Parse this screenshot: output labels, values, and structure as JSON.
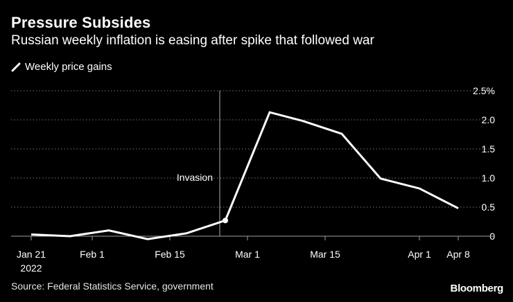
{
  "header": {
    "title": "Pressure Subsides",
    "subtitle": "Russian weekly inflation is easing after spike that followed war"
  },
  "legend": {
    "label": "Weekly price gains"
  },
  "footer": {
    "source": "Source: Federal Statistics Service, government",
    "brand": "Bloomberg"
  },
  "colors": {
    "background": "#000000",
    "line": "#ffffff",
    "grid": "#7a7a7a",
    "text": "#ffffff"
  },
  "chart_data": {
    "type": "line",
    "title": "Pressure Subsides",
    "subtitle": "Russian weekly inflation is easing after spike that followed war",
    "series": [
      {
        "name": "Weekly price gains",
        "x": [
          "Jan 21",
          "Jan 28",
          "Feb 4",
          "Feb 11",
          "Feb 18",
          "Feb 25",
          "Mar 5",
          "Mar 11",
          "Mar 18",
          "Mar 25",
          "Apr 1",
          "Apr 8"
        ],
        "values": [
          0.03,
          0.0,
          0.1,
          -0.05,
          0.05,
          0.27,
          2.13,
          1.98,
          1.76,
          0.99,
          0.82,
          0.48
        ]
      }
    ],
    "xlabel": "",
    "ylabel": "",
    "ylim": [
      -0.2,
      2.5
    ],
    "yticks": [
      {
        "value": 0,
        "label": "0"
      },
      {
        "value": 0.5,
        "label": "0.5"
      },
      {
        "value": 1.0,
        "label": "1.0"
      },
      {
        "value": 1.5,
        "label": "1.5"
      },
      {
        "value": 2.0,
        "label": "2.0"
      },
      {
        "value": 2.5,
        "label": "2.5%"
      }
    ],
    "xticks": [
      {
        "date": "Jan 21",
        "label": "Jan 21",
        "sublabel": "2022"
      },
      {
        "date": "Feb 1",
        "label": "Feb 1"
      },
      {
        "date": "Feb 15",
        "label": "Feb 15"
      },
      {
        "date": "Mar 1",
        "label": "Mar 1"
      },
      {
        "date": "Mar 15",
        "label": "Mar 15"
      },
      {
        "date": "Apr 1",
        "label": "Apr 1"
      },
      {
        "date": "Apr 8",
        "label": "Apr 8"
      }
    ],
    "annotation": {
      "label": "Invasion",
      "date": "Feb 24"
    },
    "grid": true
  }
}
